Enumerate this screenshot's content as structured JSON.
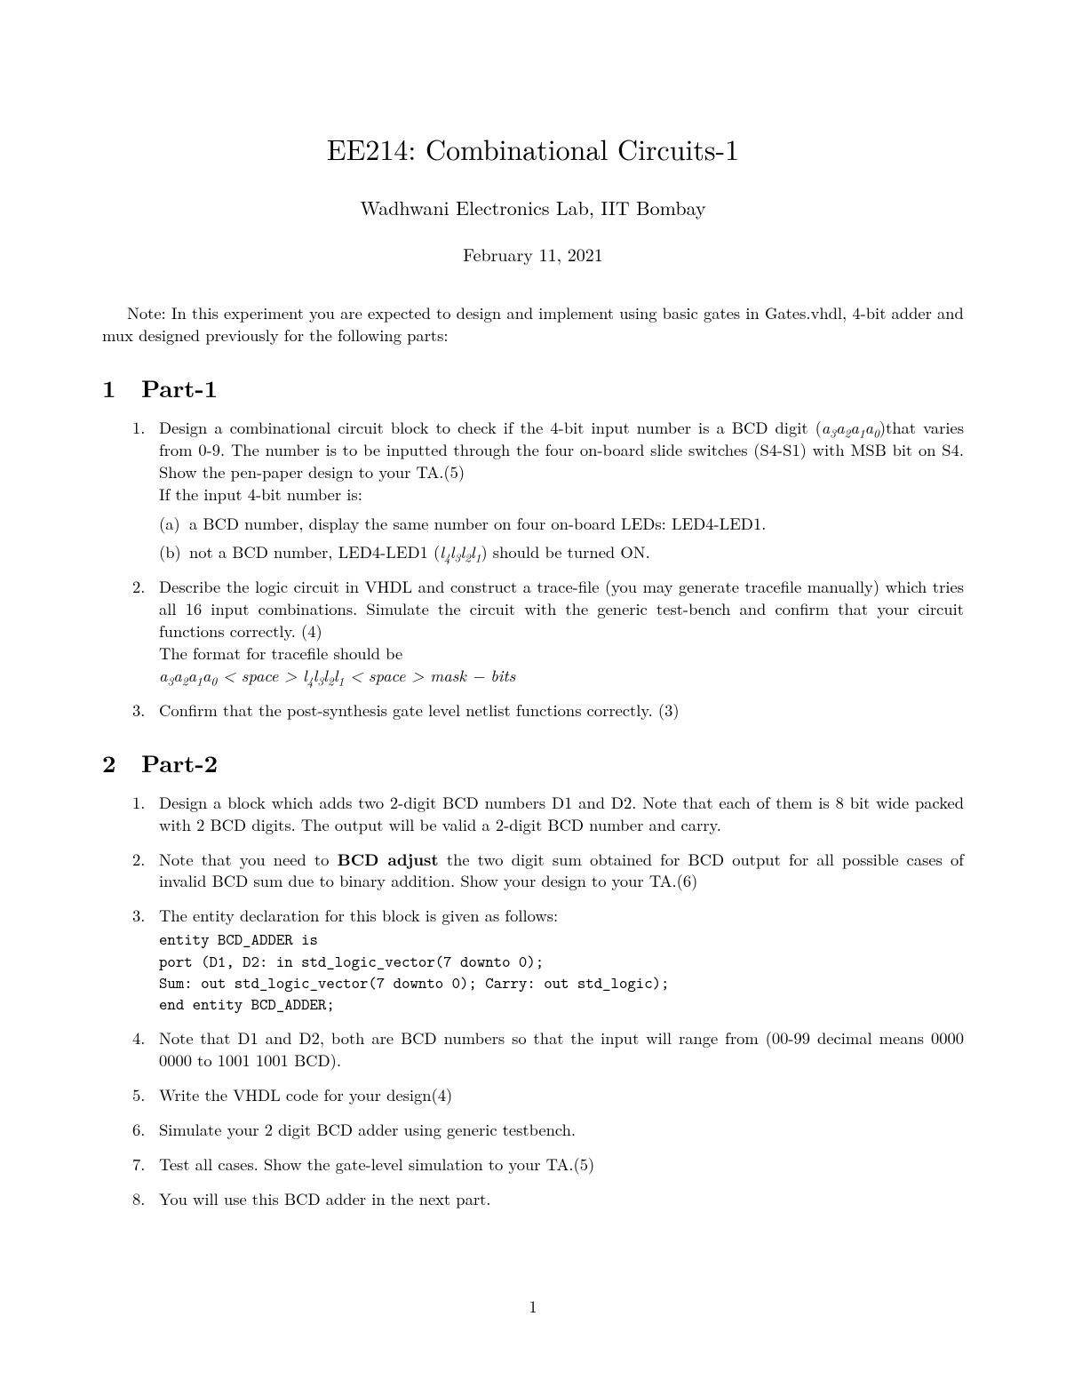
{
  "document": {
    "title": "EE214: Combinational Circuits-1",
    "subtitle": "Wadhwani Electronics Lab, IIT Bombay",
    "date": "February 11, 2021",
    "note": "Note: In this experiment you are expected to design and implement using basic gates in Gates.vhdl, 4-bit adder and mux designed previously for the following parts:",
    "page_number": "1",
    "colors": {
      "background": "#ffffff",
      "text": "#000000"
    },
    "typography": {
      "body_fontsize_pt": 11,
      "title_fontsize_pt": 17,
      "section_fontsize_pt": 14
    }
  },
  "part1": {
    "heading_num": "1",
    "heading": "Part-1",
    "items": {
      "i1_a": "Design a combinational circuit block to check if the 4-bit input number is a BCD digit (",
      "i1_b": ")that varies from 0-9. The number is to be inputted through the four on-board slide switches (S4-S1) with MSB bit on S4. Show the pen-paper design to your TA.(5)",
      "i1_c": "If the input 4-bit number is:",
      "i1_sub_a": "a BCD number, display the same number on four on-board LEDs: LED4-LED1.",
      "i1_sub_b_a": "not a BCD number, LED4-LED1 (",
      "i1_sub_b_b": ") should be turned ON.",
      "i2_a": "Describe the logic circuit in VHDL and construct a trace-file (you may generate tracefile manually) which tries all 16 input combinations. Simulate the circuit with the generic test-bench and confirm that your circuit functions correctly. (4)",
      "i2_b": "The format for tracefile should be",
      "i3": "Confirm that the post-synthesis gate level netlist functions correctly. (3)"
    }
  },
  "part2": {
    "heading_num": "2",
    "heading": "Part-2",
    "items": {
      "i1": "Design a block which adds two 2-digit BCD numbers D1 and D2. Note that each of them is 8 bit wide packed with 2 BCD digits. The output will be valid a 2-digit BCD number and carry.",
      "i2_a": "Note that you need to ",
      "i2_bold": "BCD adjust",
      "i2_b": " the two digit sum obtained for BCD output for all possible cases of invalid BCD sum due to binary addition. Show your design to your TA.(6)",
      "i3": "The entity declaration for this block is given as follows:",
      "i3_code1": "entity BCD_ADDER is",
      "i3_code2": "port (D1, D2:  in std_logic_vector(7 downto 0);",
      "i3_code3": "Sum:  out std_logic_vector(7 downto 0); Carry:  out std_logic);",
      "i3_code4": "end entity BCD_ADDER;",
      "i4": "Note that D1 and D2, both are BCD numbers so that the input will range from (00-99 decimal means 0000 0000 to 1001 1001 BCD).",
      "i5": "Write the VHDL code for your design(4)",
      "i6": "Simulate your 2 digit BCD adder using generic testbench.",
      "i7": "Test all cases. Show the gate-level simulation to your TA.(5)",
      "i8": "You will use this BCD adder in the next part."
    }
  }
}
